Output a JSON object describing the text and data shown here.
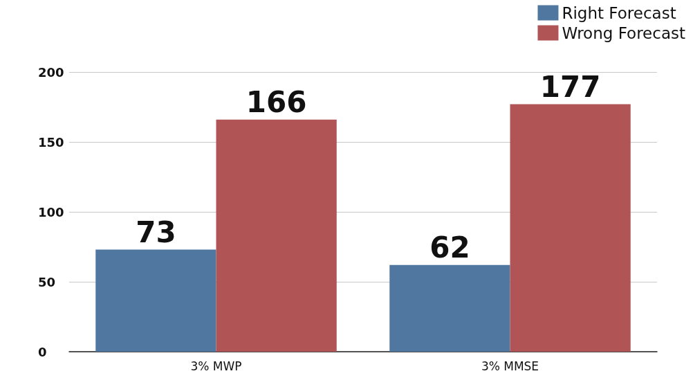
{
  "chart_data": {
    "type": "bar",
    "categories": [
      "3% MWP",
      "3% MMSE"
    ],
    "series": [
      {
        "name": "Right Forecast",
        "color": "#4f77a0",
        "values": [
          73,
          62
        ]
      },
      {
        "name": "Wrong Forecast",
        "color": "#b05455",
        "values": [
          166,
          177
        ]
      }
    ],
    "ylim": [
      0,
      200
    ],
    "yticks": [
      0,
      50,
      100,
      150,
      200
    ],
    "grid": "y",
    "legend": "top right",
    "data_labels": true
  }
}
